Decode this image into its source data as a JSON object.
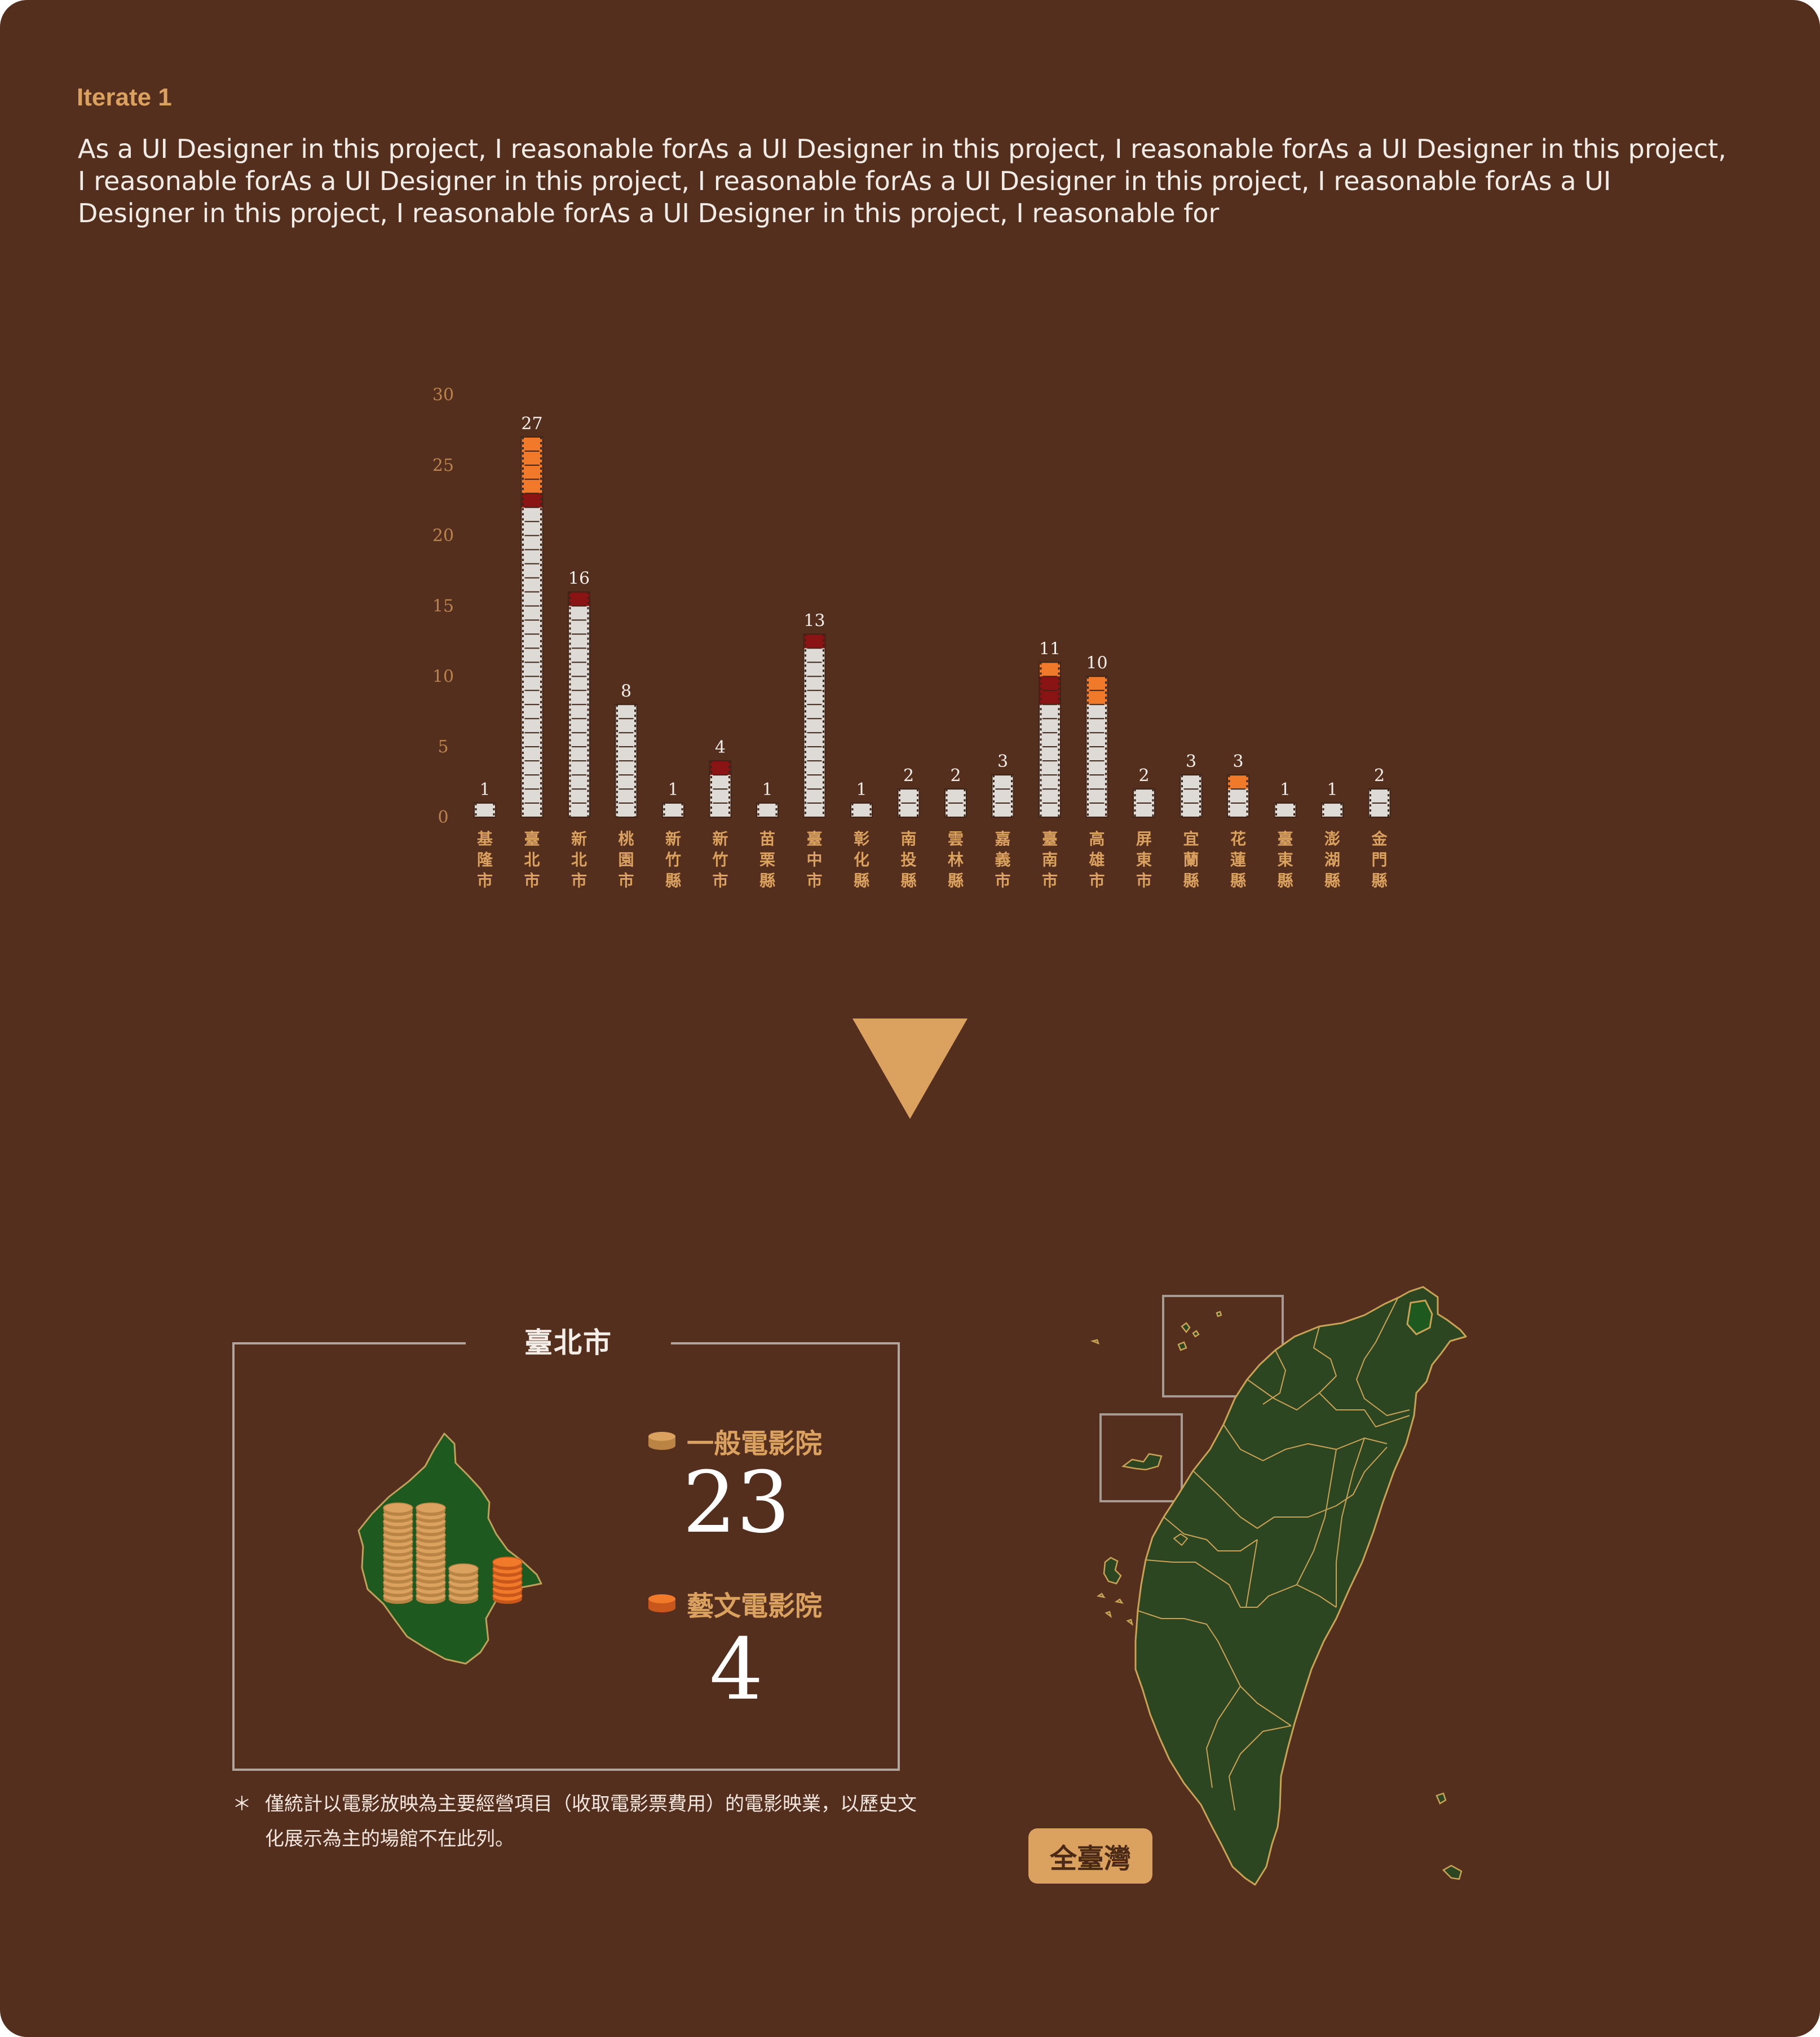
{
  "header": {
    "label": "Iterate 1",
    "text": "As a UI Designer in this project, I reasonable forAs a UI Designer in this project, I reasonable forAs a UI Designer in this project, I reasonable forAs a UI Designer in this project, I reasonable forAs a UI Designer in this project, I reasonable forAs a UI Designer in this project, I reasonable forAs a UI Designer in this project, I reasonable for"
  },
  "colors": {
    "background": "#552f1e",
    "accent": "#dba25f",
    "general": "#dedad6",
    "art": "#f0792a",
    "dark_red": "#8a1313",
    "map_green": "#2c4622",
    "district_green": "#1e5a1f"
  },
  "chart_data": {
    "type": "bar",
    "stacked": true,
    "ylim": [
      0,
      30
    ],
    "yticks": [
      0,
      5,
      10,
      15,
      20,
      25,
      30
    ],
    "categories": [
      "基隆市",
      "臺北市",
      "新北市",
      "桃園市",
      "新竹縣",
      "新竹市",
      "苗栗縣",
      "臺中市",
      "彰化縣",
      "南投縣",
      "雲林縣",
      "嘉義市",
      "臺南市",
      "高雄市",
      "屏東市",
      "宜蘭縣",
      "花蓮縣",
      "臺東縣",
      "澎湖縣",
      "金門縣"
    ],
    "totals": [
      1,
      27,
      16,
      8,
      1,
      4,
      1,
      13,
      1,
      2,
      2,
      3,
      11,
      10,
      2,
      3,
      3,
      1,
      1,
      2
    ],
    "series": [
      {
        "values": [
          1,
          22,
          15,
          8,
          1,
          3,
          1,
          12,
          1,
          2,
          2,
          3,
          8,
          8,
          2,
          3,
          2,
          1,
          1,
          2
        ],
        "color": "#dedad6"
      },
      {
        "values": [
          0,
          1,
          1,
          0,
          0,
          1,
          0,
          1,
          0,
          0,
          0,
          0,
          2,
          0,
          0,
          0,
          0,
          0,
          0,
          0
        ],
        "color": "#8a1313"
      },
      {
        "values": [
          0,
          4,
          0,
          0,
          0,
          0,
          0,
          0,
          0,
          0,
          0,
          0,
          1,
          2,
          0,
          0,
          1,
          0,
          0,
          0
        ],
        "color": "#f0792a"
      }
    ]
  },
  "district_panel": {
    "title": "臺北市",
    "general_label": "一般電影院",
    "general_count": "23",
    "art_label": "藝文電影院",
    "art_count": "4"
  },
  "footnote": {
    "mark": "＊",
    "text": "僅統計以電影放映為主要經營項目（收取電影票費用）的電影映業，以歷史文化展示為主的場館不在此列。"
  },
  "map": {
    "button_label": "全臺灣"
  }
}
